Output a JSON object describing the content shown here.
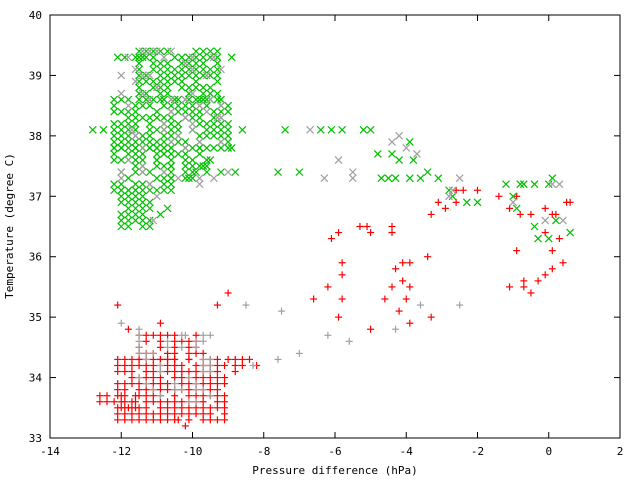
{
  "chart_data": {
    "type": "scatter",
    "title": "",
    "xlabel": "Pressure difference (hPa)",
    "ylabel": "Temperature (degree C)",
    "xlim": [
      -14,
      2
    ],
    "ylim": [
      33,
      40
    ],
    "xticks": [
      -14,
      -12,
      -10,
      -8,
      -6,
      -4,
      -2,
      0,
      2
    ],
    "yticks": [
      33,
      34,
      35,
      36,
      37,
      38,
      39,
      40
    ],
    "grid": false,
    "legend": "none",
    "series": [
      {
        "name": "red-plus",
        "color": "#ff0000",
        "marker": "plus",
        "points": [
          [
            -12.1,
            35.2
          ],
          [
            -9.0,
            35.4
          ],
          [
            -9.3,
            35.2
          ],
          [
            -10.9,
            34.9
          ],
          [
            -11.8,
            34.8
          ],
          [
            -6.6,
            35.3
          ],
          [
            -6.2,
            35.5
          ],
          [
            -5.8,
            35.7
          ],
          [
            -5.8,
            35.9
          ],
          [
            -5.8,
            35.3
          ],
          [
            -5.9,
            35.0
          ],
          [
            -6.1,
            36.3
          ],
          [
            -5.9,
            36.4
          ],
          [
            -5.3,
            36.5
          ],
          [
            -5.1,
            36.5
          ],
          [
            -5.0,
            36.4
          ],
          [
            -4.4,
            36.5
          ],
          [
            -4.4,
            36.4
          ],
          [
            -4.6,
            35.3
          ],
          [
            -4.4,
            35.5
          ],
          [
            -4.3,
            35.8
          ],
          [
            -4.1,
            35.9
          ],
          [
            -3.9,
            35.9
          ],
          [
            -4.1,
            35.6
          ],
          [
            -4.0,
            35.3
          ],
          [
            -4.2,
            35.1
          ],
          [
            -3.9,
            35.5
          ],
          [
            -3.9,
            34.9
          ],
          [
            -5.0,
            34.8
          ],
          [
            -3.3,
            35.0
          ],
          [
            -3.4,
            36.0
          ],
          [
            -3.3,
            36.7
          ],
          [
            -3.1,
            36.9
          ],
          [
            -2.9,
            36.8
          ],
          [
            -2.6,
            36.9
          ],
          [
            -2.6,
            37.1
          ],
          [
            -2.4,
            37.1
          ],
          [
            -2.0,
            37.1
          ],
          [
            -1.4,
            37.0
          ],
          [
            -1.1,
            36.8
          ],
          [
            -0.8,
            36.7
          ],
          [
            -0.9,
            36.1
          ],
          [
            -1.1,
            35.5
          ],
          [
            -0.7,
            35.5
          ],
          [
            -0.7,
            35.6
          ],
          [
            -0.5,
            35.4
          ],
          [
            -0.3,
            35.6
          ],
          [
            -0.1,
            35.7
          ],
          [
            0.1,
            35.8
          ],
          [
            0.1,
            36.1
          ],
          [
            0.4,
            35.9
          ],
          [
            0.3,
            36.3
          ],
          [
            0.1,
            36.7
          ],
          [
            -0.1,
            36.8
          ],
          [
            0.2,
            36.7
          ],
          [
            0.5,
            36.9
          ],
          [
            0.6,
            36.9
          ],
          [
            -0.1,
            36.4
          ],
          [
            -0.5,
            36.7
          ],
          [
            -0.9,
            37.0
          ],
          [
            -8.2,
            34.2
          ],
          [
            -8.4,
            34.3
          ],
          [
            -12.6,
            33.6
          ],
          [
            -12.6,
            33.7
          ],
          [
            -10.2,
            33.2
          ],
          [
            -10.4,
            33.3
          ]
        ]
      },
      {
        "name": "gray-plus",
        "color": "#a0a0a0",
        "marker": "plus",
        "points": [
          [
            -12.0,
            34.9
          ],
          [
            -11.5,
            34.8
          ],
          [
            -8.5,
            35.2
          ],
          [
            -7.5,
            35.1
          ],
          [
            -7.6,
            34.3
          ],
          [
            -7.0,
            34.4
          ],
          [
            -6.2,
            34.7
          ],
          [
            -5.6,
            34.6
          ],
          [
            -4.3,
            34.8
          ],
          [
            -3.6,
            35.2
          ],
          [
            -2.5,
            35.2
          ],
          [
            -8.3,
            34.2
          ],
          [
            -10.2,
            34.7
          ],
          [
            -9.7,
            34.7
          ]
        ]
      },
      {
        "name": "green-x",
        "color": "#00c000",
        "marker": "cross",
        "points": [
          [
            -12.8,
            38.1
          ],
          [
            -12.5,
            38.1
          ],
          [
            -8.6,
            38.1
          ],
          [
            -7.4,
            38.1
          ],
          [
            -6.4,
            38.1
          ],
          [
            -6.1,
            38.1
          ],
          [
            -5.8,
            38.1
          ],
          [
            -5.2,
            38.1
          ],
          [
            -5.0,
            38.1
          ],
          [
            -7.6,
            37.4
          ],
          [
            -7.0,
            37.4
          ],
          [
            -4.8,
            37.7
          ],
          [
            -4.4,
            37.7
          ],
          [
            -4.2,
            37.6
          ],
          [
            -3.9,
            37.9
          ],
          [
            -3.8,
            37.6
          ],
          [
            -3.4,
            37.4
          ],
          [
            -3.6,
            37.3
          ],
          [
            -3.1,
            37.3
          ],
          [
            -4.7,
            37.3
          ],
          [
            -4.5,
            37.3
          ],
          [
            -4.3,
            37.3
          ],
          [
            -3.9,
            37.3
          ],
          [
            -2.8,
            37.1
          ],
          [
            -2.7,
            37.0
          ],
          [
            -2.3,
            36.9
          ],
          [
            -2.0,
            36.9
          ],
          [
            -1.2,
            37.2
          ],
          [
            -0.8,
            37.2
          ],
          [
            -0.7,
            37.2
          ],
          [
            -1.0,
            37.0
          ],
          [
            -0.4,
            37.2
          ],
          [
            0.1,
            37.3
          ],
          [
            0.0,
            37.2
          ],
          [
            -0.9,
            36.8
          ],
          [
            -0.4,
            36.5
          ],
          [
            -0.3,
            36.3
          ],
          [
            0.0,
            36.3
          ],
          [
            0.2,
            36.6
          ],
          [
            0.6,
            36.4
          ],
          [
            -8.9,
            37.8
          ],
          [
            -9.2,
            37.4
          ],
          [
            -8.8,
            37.4
          ],
          [
            -9.5,
            37.6
          ],
          [
            -9.7,
            37.5
          ],
          [
            -9.9,
            37.4
          ],
          [
            -10.1,
            37.3
          ],
          [
            -12.1,
            39.3
          ],
          [
            -11.9,
            39.3
          ],
          [
            -11.6,
            39.3
          ],
          [
            -11.4,
            39.3
          ],
          [
            -8.9,
            39.3
          ],
          [
            -11.6,
            36.8
          ],
          [
            -11.4,
            36.7
          ],
          [
            -10.7,
            36.8
          ],
          [
            -10.9,
            36.7
          ]
        ]
      },
      {
        "name": "gray-x",
        "color": "#a0a0a0",
        "marker": "cross",
        "points": [
          [
            -6.7,
            38.1
          ],
          [
            -5.9,
            37.6
          ],
          [
            -6.3,
            37.3
          ],
          [
            -5.5,
            37.3
          ],
          [
            -5.5,
            37.4
          ],
          [
            -4.4,
            37.9
          ],
          [
            -4.0,
            37.8
          ],
          [
            -4.2,
            38.0
          ],
          [
            -3.7,
            37.7
          ],
          [
            -2.5,
            37.3
          ],
          [
            -2.8,
            37.0
          ],
          [
            -2.7,
            37.1
          ],
          [
            0.1,
            37.2
          ],
          [
            0.3,
            37.2
          ],
          [
            0.4,
            36.6
          ],
          [
            -0.1,
            36.6
          ],
          [
            -1.0,
            36.9
          ],
          [
            -9.0,
            37.4
          ],
          [
            -10.6,
            39.4
          ],
          [
            -11.7,
            38.1
          ],
          [
            -11.0,
            37.0
          ],
          [
            -10.4,
            37.3
          ],
          [
            -9.5,
            38.6
          ],
          [
            -9.3,
            38.3
          ],
          [
            -11.8,
            37.6
          ],
          [
            -11.1,
            36.6
          ]
        ]
      }
    ],
    "dense_regions": [
      {
        "series": "red-plus",
        "x": [
          -12.1,
          -9.0
        ],
        "y": [
          33.3,
          34.3
        ],
        "step": [
          0.2,
          0.1
        ],
        "density": 0.85
      },
      {
        "series": "red-plus",
        "x": [
          -11.5,
          -9.7
        ],
        "y": [
          34.3,
          34.7
        ],
        "step": [
          0.2,
          0.1
        ],
        "density": 0.6
      },
      {
        "series": "red-plus",
        "x": [
          -12.4,
          -11.6
        ],
        "y": [
          33.5,
          33.7
        ],
        "step": [
          0.2,
          0.1
        ],
        "density": 0.7
      },
      {
        "series": "red-plus",
        "x": [
          -9.0,
          -8.6
        ],
        "y": [
          34.0,
          34.3
        ],
        "step": [
          0.2,
          0.1
        ],
        "density": 0.6
      },
      {
        "series": "gray-plus",
        "x": [
          -11.5,
          -9.5
        ],
        "y": [
          33.6,
          34.7
        ],
        "step": [
          0.2,
          0.1
        ],
        "density": 0.25
      },
      {
        "series": "green-x",
        "x": [
          -11.5,
          -9.2
        ],
        "y": [
          38.6,
          39.4
        ],
        "step": [
          0.2,
          0.1
        ],
        "density": 0.8
      },
      {
        "series": "green-x",
        "x": [
          -12.2,
          -9.0
        ],
        "y": [
          37.8,
          38.6
        ],
        "step": [
          0.2,
          0.1
        ],
        "density": 0.8
      },
      {
        "series": "green-x",
        "x": [
          -12.2,
          -10.6
        ],
        "y": [
          37.1,
          37.8
        ],
        "step": [
          0.2,
          0.1
        ],
        "density": 0.75
      },
      {
        "series": "green-x",
        "x": [
          -12.0,
          -11.2
        ],
        "y": [
          36.5,
          37.1
        ],
        "step": [
          0.2,
          0.1
        ],
        "density": 0.6
      },
      {
        "series": "green-x",
        "x": [
          -11.0,
          -9.6
        ],
        "y": [
          37.3,
          37.8
        ],
        "step": [
          0.2,
          0.1
        ],
        "density": 0.5
      },
      {
        "series": "gray-x",
        "x": [
          -12.0,
          -9.2
        ],
        "y": [
          37.2,
          39.4
        ],
        "step": [
          0.2,
          0.1
        ],
        "density": 0.15
      }
    ]
  }
}
